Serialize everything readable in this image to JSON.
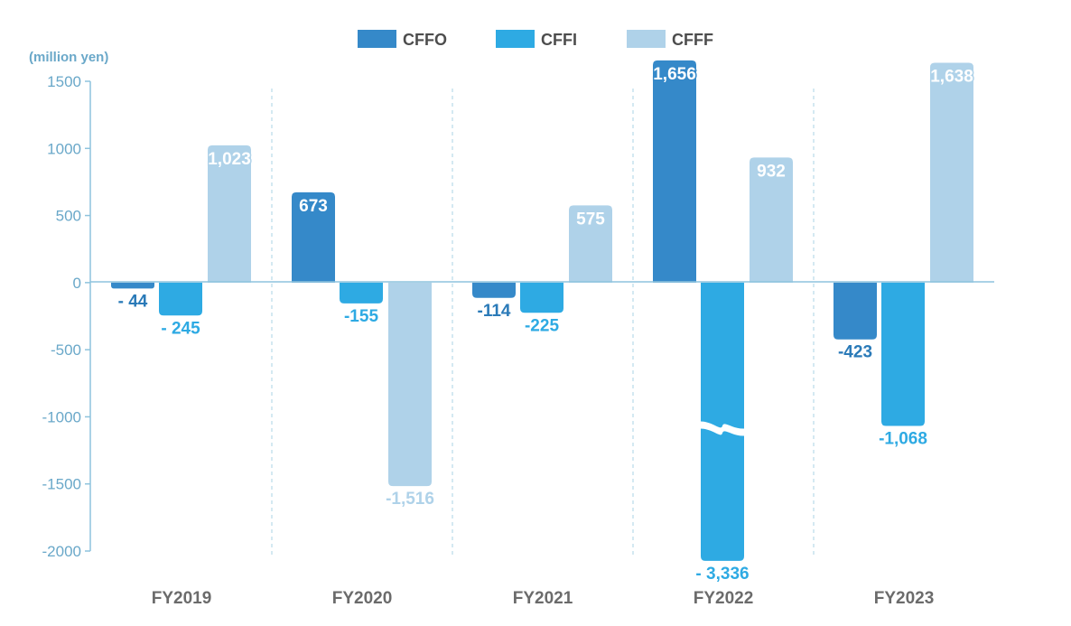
{
  "chart_data": {
    "type": "bar",
    "ylabel": "(million yen)",
    "categories": [
      "FY2019",
      "FY2020",
      "FY2021",
      "FY2022",
      "FY2023"
    ],
    "ylim": [
      -2000,
      1500
    ],
    "yticks": [
      1500,
      1000,
      500,
      0,
      -500,
      -1000,
      -1500,
      -2000
    ],
    "ytick_labels": [
      "1500",
      "1000",
      "500",
      "0",
      "-500",
      "-1000",
      "-1500",
      "-2000"
    ],
    "legend_position": "top-center",
    "axis_break": {
      "category": "FY2022",
      "series": "CFFI"
    },
    "series": [
      {
        "name": "CFFO",
        "color": "#3589c9",
        "values": [
          -44,
          673,
          -114,
          1656,
          -423
        ],
        "labels": [
          "- 44",
          "673",
          "-114",
          "1,656",
          "-423"
        ]
      },
      {
        "name": "CFFI",
        "color": "#2eaae3",
        "values": [
          -245,
          -155,
          -225,
          -3336,
          -1068
        ],
        "labels": [
          "- 245",
          "-155",
          "-225",
          "- 3,336",
          "-1,068"
        ]
      },
      {
        "name": "CFFF",
        "color": "#afd2e9",
        "values": [
          1023,
          -1516,
          575,
          932,
          1638
        ],
        "labels": [
          "1,023",
          "-1,516",
          "575",
          "932",
          "1,638"
        ]
      }
    ]
  }
}
